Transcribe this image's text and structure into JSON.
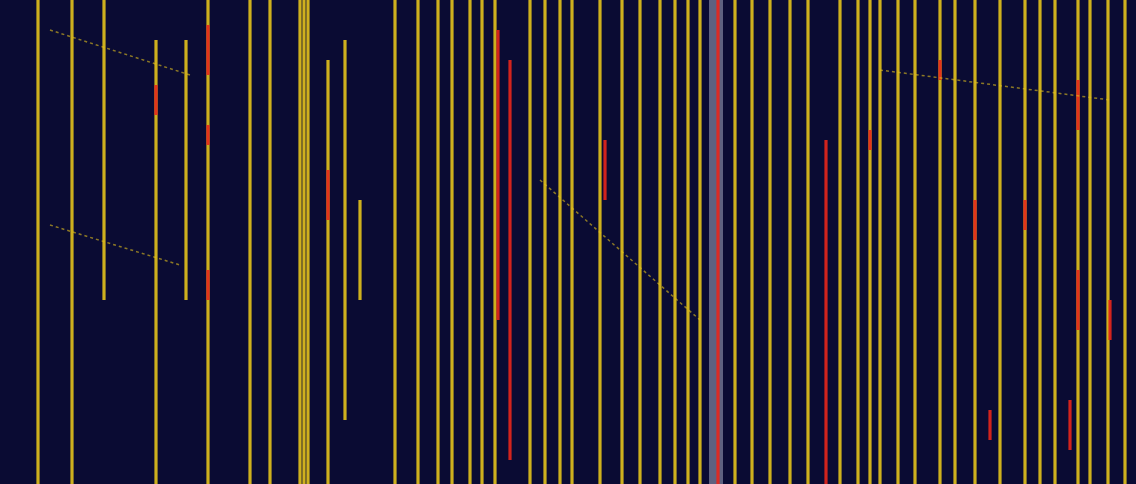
{
  "chart_data": {
    "type": "waterfall",
    "tick_labels": false,
    "grid": false,
    "xlim": [
      0,
      1136
    ],
    "ylim": [
      0,
      484
    ],
    "colors": [
      "#a4a9c0",
      "#e3c21c",
      "#e8261b"
    ],
    "streaks": [
      {
        "x": 716,
        "y": [
          0,
          484
        ],
        "level": 0
      },
      {
        "x": 38,
        "y": [
          0,
          484
        ],
        "level": 1
      },
      {
        "x": 72,
        "y": [
          0,
          484
        ],
        "level": 1
      },
      {
        "x": 104,
        "y": [
          0,
          300
        ],
        "level": 1
      },
      {
        "x": 156,
        "y": [
          40,
          484
        ],
        "level": 1
      },
      {
        "x": 186,
        "y": [
          40,
          300
        ],
        "level": 1
      },
      {
        "x": 208,
        "y": [
          0,
          484
        ],
        "level": 1
      },
      {
        "x": 250,
        "y": [
          0,
          484
        ],
        "level": 1
      },
      {
        "x": 270,
        "y": [
          0,
          484
        ],
        "level": 1
      },
      {
        "x": 300,
        "y": [
          0,
          484
        ],
        "level": 1
      },
      {
        "x": 304,
        "y": [
          0,
          484
        ],
        "level": 1
      },
      {
        "x": 308,
        "y": [
          0,
          484
        ],
        "level": 1
      },
      {
        "x": 328,
        "y": [
          60,
          484
        ],
        "level": 1
      },
      {
        "x": 345,
        "y": [
          40,
          420
        ],
        "level": 1
      },
      {
        "x": 360,
        "y": [
          200,
          300
        ],
        "level": 1
      },
      {
        "x": 395,
        "y": [
          0,
          484
        ],
        "level": 1
      },
      {
        "x": 418,
        "y": [
          0,
          484
        ],
        "level": 1
      },
      {
        "x": 438,
        "y": [
          0,
          484
        ],
        "level": 1
      },
      {
        "x": 452,
        "y": [
          0,
          484
        ],
        "level": 1
      },
      {
        "x": 470,
        "y": [
          0,
          484
        ],
        "level": 1
      },
      {
        "x": 482,
        "y": [
          0,
          484
        ],
        "level": 1
      },
      {
        "x": 495,
        "y": [
          0,
          484
        ],
        "level": 1
      },
      {
        "x": 530,
        "y": [
          0,
          484
        ],
        "level": 1
      },
      {
        "x": 545,
        "y": [
          0,
          484
        ],
        "level": 1
      },
      {
        "x": 560,
        "y": [
          0,
          484
        ],
        "level": 1
      },
      {
        "x": 572,
        "y": [
          0,
          484
        ],
        "level": 1
      },
      {
        "x": 600,
        "y": [
          0,
          484
        ],
        "level": 1
      },
      {
        "x": 622,
        "y": [
          0,
          484
        ],
        "level": 1
      },
      {
        "x": 640,
        "y": [
          0,
          484
        ],
        "level": 1
      },
      {
        "x": 660,
        "y": [
          0,
          484
        ],
        "level": 1
      },
      {
        "x": 675,
        "y": [
          0,
          484
        ],
        "level": 1
      },
      {
        "x": 688,
        "y": [
          0,
          484
        ],
        "level": 1
      },
      {
        "x": 700,
        "y": [
          0,
          484
        ],
        "level": 1
      },
      {
        "x": 735,
        "y": [
          0,
          484
        ],
        "level": 1
      },
      {
        "x": 752,
        "y": [
          0,
          484
        ],
        "level": 1
      },
      {
        "x": 770,
        "y": [
          0,
          484
        ],
        "level": 1
      },
      {
        "x": 790,
        "y": [
          0,
          484
        ],
        "level": 1
      },
      {
        "x": 808,
        "y": [
          0,
          484
        ],
        "level": 1
      },
      {
        "x": 840,
        "y": [
          0,
          484
        ],
        "level": 1
      },
      {
        "x": 858,
        "y": [
          0,
          484
        ],
        "level": 1
      },
      {
        "x": 870,
        "y": [
          0,
          484
        ],
        "level": 1
      },
      {
        "x": 880,
        "y": [
          0,
          484
        ],
        "level": 1
      },
      {
        "x": 898,
        "y": [
          0,
          484
        ],
        "level": 1
      },
      {
        "x": 915,
        "y": [
          0,
          484
        ],
        "level": 1
      },
      {
        "x": 940,
        "y": [
          0,
          484
        ],
        "level": 1
      },
      {
        "x": 955,
        "y": [
          0,
          484
        ],
        "level": 1
      },
      {
        "x": 975,
        "y": [
          0,
          484
        ],
        "level": 1
      },
      {
        "x": 1000,
        "y": [
          0,
          484
        ],
        "level": 1
      },
      {
        "x": 1025,
        "y": [
          0,
          484
        ],
        "level": 1
      },
      {
        "x": 1040,
        "y": [
          0,
          484
        ],
        "level": 1
      },
      {
        "x": 1055,
        "y": [
          0,
          484
        ],
        "level": 1
      },
      {
        "x": 1078,
        "y": [
          0,
          484
        ],
        "level": 1
      },
      {
        "x": 1090,
        "y": [
          0,
          484
        ],
        "level": 1
      },
      {
        "x": 1108,
        "y": [
          0,
          484
        ],
        "level": 1
      },
      {
        "x": 1125,
        "y": [
          0,
          484
        ],
        "level": 1
      },
      {
        "x": 208,
        "y": [
          25,
          75
        ],
        "level": 2
      },
      {
        "x": 156,
        "y": [
          85,
          115
        ],
        "level": 2
      },
      {
        "x": 208,
        "y": [
          125,
          145
        ],
        "level": 2
      },
      {
        "x": 208,
        "y": [
          270,
          300
        ],
        "level": 2
      },
      {
        "x": 328,
        "y": [
          170,
          220
        ],
        "level": 2
      },
      {
        "x": 498,
        "y": [
          30,
          320
        ],
        "level": 2
      },
      {
        "x": 510,
        "y": [
          60,
          460
        ],
        "level": 2
      },
      {
        "x": 605,
        "y": [
          140,
          200
        ],
        "level": 2
      },
      {
        "x": 718,
        "y": [
          0,
          484
        ],
        "level": 2
      },
      {
        "x": 826,
        "y": [
          140,
          484
        ],
        "level": 2
      },
      {
        "x": 870,
        "y": [
          130,
          150
        ],
        "level": 2
      },
      {
        "x": 940,
        "y": [
          60,
          80
        ],
        "level": 2
      },
      {
        "x": 975,
        "y": [
          200,
          240
        ],
        "level": 2
      },
      {
        "x": 990,
        "y": [
          410,
          440
        ],
        "level": 2
      },
      {
        "x": 1025,
        "y": [
          200,
          230
        ],
        "level": 2
      },
      {
        "x": 1070,
        "y": [
          400,
          450
        ],
        "level": 2
      },
      {
        "x": 1078,
        "y": [
          80,
          130
        ],
        "level": 2
      },
      {
        "x": 1078,
        "y": [
          270,
          330
        ],
        "level": 2
      },
      {
        "x": 1110,
        "y": [
          300,
          340
        ],
        "level": 2
      }
    ],
    "traces": [
      {
        "x": [
          50,
          190
        ],
        "y": [
          30,
          75
        ],
        "level": 1
      },
      {
        "x": 50,
        "y": [
          225,
          265
        ],
        "level": 1,
        "x_end": 180
      },
      {
        "x": [
          540,
          700
        ],
        "y": [
          180,
          320
        ],
        "level": 1
      },
      {
        "x": [
          880,
          1110
        ],
        "y": [
          70,
          100
        ],
        "level": 1
      }
    ]
  }
}
